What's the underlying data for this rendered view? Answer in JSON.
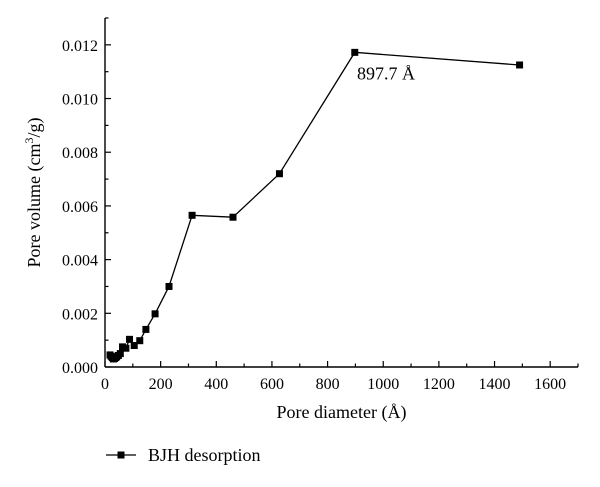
{
  "chart_data": {
    "type": "line",
    "xlabel": "Pore diameter (Å)",
    "ylabel_parts": [
      "Pore volume (cm",
      "3",
      "/g)"
    ],
    "xlim": [
      0,
      1700
    ],
    "ylim": [
      0,
      0.013
    ],
    "x_ticks": [
      0,
      200,
      400,
      600,
      800,
      1000,
      1200,
      1400,
      1600
    ],
    "x_tick_labels": [
      "0",
      "200",
      "400",
      "600",
      "800",
      "1000",
      "1200",
      "1400",
      "1600"
    ],
    "y_ticks": [
      0.0,
      0.002,
      0.004,
      0.006,
      0.008,
      0.01,
      0.012
    ],
    "y_tick_labels": [
      "0.000",
      "0.002",
      "0.004",
      "0.006",
      "0.008",
      "0.010",
      "0.012"
    ],
    "grid": false,
    "legend_position": "bottom-left",
    "series": [
      {
        "name": "BJH desorption",
        "marker": "square",
        "color": "#000000",
        "points": [
          [
            18,
            0.00045
          ],
          [
            22,
            0.0004
          ],
          [
            26,
            0.00035
          ],
          [
            30,
            0.0003
          ],
          [
            34,
            0.00032
          ],
          [
            38,
            0.00035
          ],
          [
            42,
            0.00038
          ],
          [
            48,
            0.00043
          ],
          [
            55,
            0.0005
          ],
          [
            63,
            0.00075
          ],
          [
            75,
            0.0007
          ],
          [
            88,
            0.00103
          ],
          [
            105,
            0.0008
          ],
          [
            125,
            0.00098
          ],
          [
            147,
            0.0014
          ],
          [
            180,
            0.00198
          ],
          [
            230,
            0.003
          ],
          [
            313,
            0.00565
          ],
          [
            460,
            0.00558
          ],
          [
            627,
            0.0072
          ],
          [
            897.7,
            0.01172
          ],
          [
            1490,
            0.01125
          ]
        ]
      }
    ],
    "annotations": [
      {
        "text": "897.7 Å",
        "x": 1010,
        "y": 0.0107
      }
    ]
  }
}
